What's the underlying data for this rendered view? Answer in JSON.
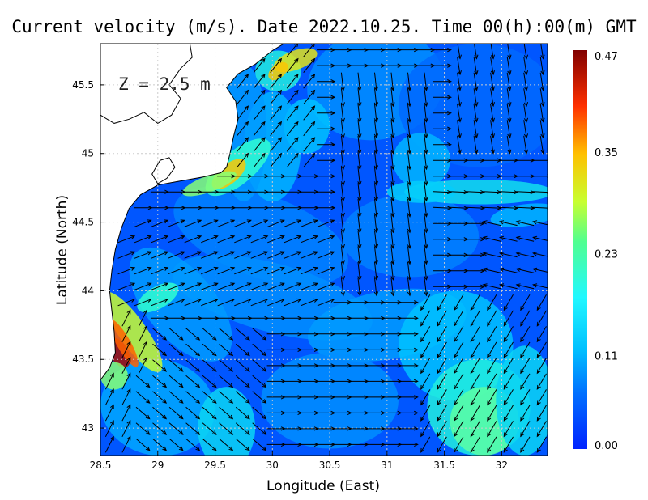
{
  "chart_data": {
    "type": "heatmap",
    "title": "Current velocity (m/s). Date 2022.10.25. Time 00(h):00(m) GMT",
    "annotation": "Z = 2.5 m",
    "xlabel": "Longitude (East)",
    "ylabel": "Latitude (North)",
    "xlim": [
      28.5,
      32.4
    ],
    "ylim": [
      42.8,
      45.8
    ],
    "xticks": [
      "28.5",
      "29",
      "29.5",
      "30",
      "30.5",
      "31",
      "31.5",
      "32"
    ],
    "yticks": [
      "43",
      "43.5",
      "44",
      "44.5",
      "45",
      "45.5"
    ],
    "colorbar": {
      "min": 0.0,
      "max": 0.47,
      "ticks": [
        "0.00",
        "0.11",
        "0.23",
        "0.35",
        "0.47"
      ],
      "colormap": [
        "#0022ff",
        "#0070ff",
        "#00c8ff",
        "#30ffd0",
        "#c8ff30",
        "#ffc000",
        "#ff3000",
        "#800000"
      ]
    },
    "grid": true,
    "features": {
      "coastal_jets": [
        {
          "lon": 28.65,
          "lat": 43.55,
          "speed": 0.47
        },
        {
          "lon": 29.65,
          "lat": 44.85,
          "speed": 0.34
        },
        {
          "lon": 30.2,
          "lat": 45.7,
          "speed": 0.33
        }
      ],
      "eastward_jet": {
        "lat": 44.7,
        "lon_from": 31.0,
        "lon_to": 32.4,
        "speed": 0.16
      },
      "southern_high_speed_zone": {
        "lon": 31.7,
        "lat": 43.1,
        "speed": 0.22
      }
    },
    "colors": {
      "land": "#ffffff",
      "coast": "#000000",
      "arrow": "#000000",
      "grid": "#cccccc"
    }
  }
}
